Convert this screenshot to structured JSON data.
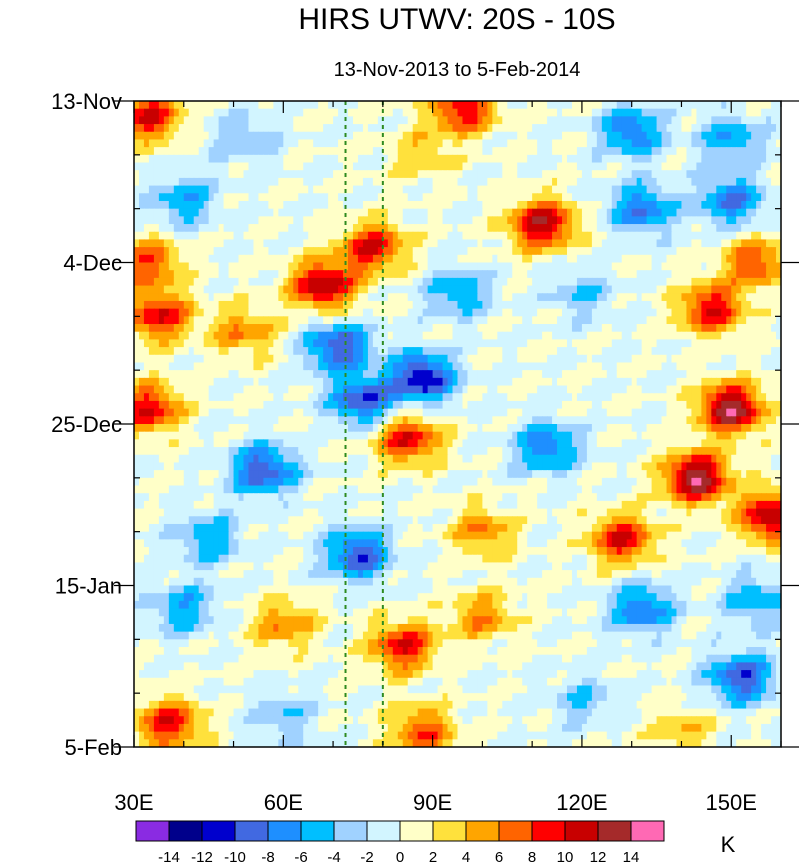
{
  "chart_data": {
    "type": "heatmap",
    "title": "HIRS UTWV: 20S - 10S",
    "subtitle": "13-Nov-2013 to 5-Feb-2014",
    "x_axis": {
      "range": [
        30,
        160
      ],
      "major_ticks": [
        30,
        60,
        90,
        120,
        150
      ],
      "tick_labels": [
        "30E",
        "60E",
        "90E",
        "120E",
        "150E"
      ],
      "minor_step": 10
    },
    "y_axis": {
      "range_days": [
        0,
        84
      ],
      "major_ticks_days": [
        0,
        21,
        42,
        63,
        84
      ],
      "tick_labels": [
        "13-Nov",
        "4-Dec",
        "25-Dec",
        "15-Jan",
        "5-Feb"
      ],
      "minor_step_days": 7
    },
    "reference_lines_lon": [
      72.5,
      80
    ],
    "colorbar": {
      "unit": "K",
      "levels": [
        -14,
        -12,
        -10,
        -8,
        -6,
        -4,
        -2,
        0,
        2,
        4,
        6,
        8,
        10,
        12,
        14
      ],
      "level_labels": [
        "-14",
        "-12",
        "-10",
        "-8",
        "-6",
        "-4",
        "-2",
        "0",
        "2",
        "4",
        "6",
        "8",
        "10",
        "12",
        "14"
      ],
      "colors": [
        "#8a2be2",
        "#00008b",
        "#0000cd",
        "#4169e1",
        "#1e8fff",
        "#00bfff",
        "#a0d2ff",
        "#d2f5ff",
        "#ffffc8",
        "#ffe13c",
        "#ffa500",
        "#ff6400",
        "#ff0000",
        "#c80000",
        "#a52a2a",
        "#ff69b4"
      ]
    },
    "anomaly_features": [
      {
        "lon": 33,
        "day": 2,
        "value": 10
      },
      {
        "lon": 52,
        "day": 5,
        "value": -4
      },
      {
        "lon": 96,
        "day": 1,
        "value": 10
      },
      {
        "lon": 88,
        "day": 7,
        "value": 4
      },
      {
        "lon": 130,
        "day": 4,
        "value": -8
      },
      {
        "lon": 150,
        "day": 5,
        "value": -6
      },
      {
        "lon": 40,
        "day": 13,
        "value": -6
      },
      {
        "lon": 112,
        "day": 16,
        "value": 12
      },
      {
        "lon": 132,
        "day": 14,
        "value": -8
      },
      {
        "lon": 150,
        "day": 13,
        "value": -8
      },
      {
        "lon": 78,
        "day": 19,
        "value": 10
      },
      {
        "lon": 68,
        "day": 24,
        "value": 12
      },
      {
        "lon": 33,
        "day": 21,
        "value": 8
      },
      {
        "lon": 155,
        "day": 21,
        "value": 8
      },
      {
        "lon": 146,
        "day": 27,
        "value": 10
      },
      {
        "lon": 35,
        "day": 28,
        "value": 10
      },
      {
        "lon": 52,
        "day": 30,
        "value": 6
      },
      {
        "lon": 95,
        "day": 25,
        "value": -6
      },
      {
        "lon": 120,
        "day": 25,
        "value": -4
      },
      {
        "lon": 71,
        "day": 32,
        "value": -10
      },
      {
        "lon": 88,
        "day": 36,
        "value": -12
      },
      {
        "lon": 76,
        "day": 39,
        "value": -10
      },
      {
        "lon": 150,
        "day": 40,
        "value": 14
      },
      {
        "lon": 33,
        "day": 40,
        "value": 10
      },
      {
        "lon": 85,
        "day": 44,
        "value": 10
      },
      {
        "lon": 113,
        "day": 45,
        "value": -8
      },
      {
        "lon": 56,
        "day": 48,
        "value": -10
      },
      {
        "lon": 143,
        "day": 49,
        "value": 14
      },
      {
        "lon": 158,
        "day": 54,
        "value": 12
      },
      {
        "lon": 128,
        "day": 57,
        "value": 10
      },
      {
        "lon": 100,
        "day": 56,
        "value": 6
      },
      {
        "lon": 75,
        "day": 59,
        "value": -10
      },
      {
        "lon": 45,
        "day": 57,
        "value": -6
      },
      {
        "lon": 132,
        "day": 66,
        "value": -8
      },
      {
        "lon": 155,
        "day": 65,
        "value": -6
      },
      {
        "lon": 84,
        "day": 71,
        "value": 10
      },
      {
        "lon": 100,
        "day": 67,
        "value": 6
      },
      {
        "lon": 60,
        "day": 68,
        "value": 6
      },
      {
        "lon": 40,
        "day": 66,
        "value": -6
      },
      {
        "lon": 152,
        "day": 75,
        "value": -10
      },
      {
        "lon": 37,
        "day": 81,
        "value": 10
      },
      {
        "lon": 88,
        "day": 82,
        "value": 8
      },
      {
        "lon": 120,
        "day": 78,
        "value": -4
      },
      {
        "lon": 60,
        "day": 80,
        "value": -4
      },
      {
        "lon": 140,
        "day": 82,
        "value": 4
      }
    ]
  }
}
